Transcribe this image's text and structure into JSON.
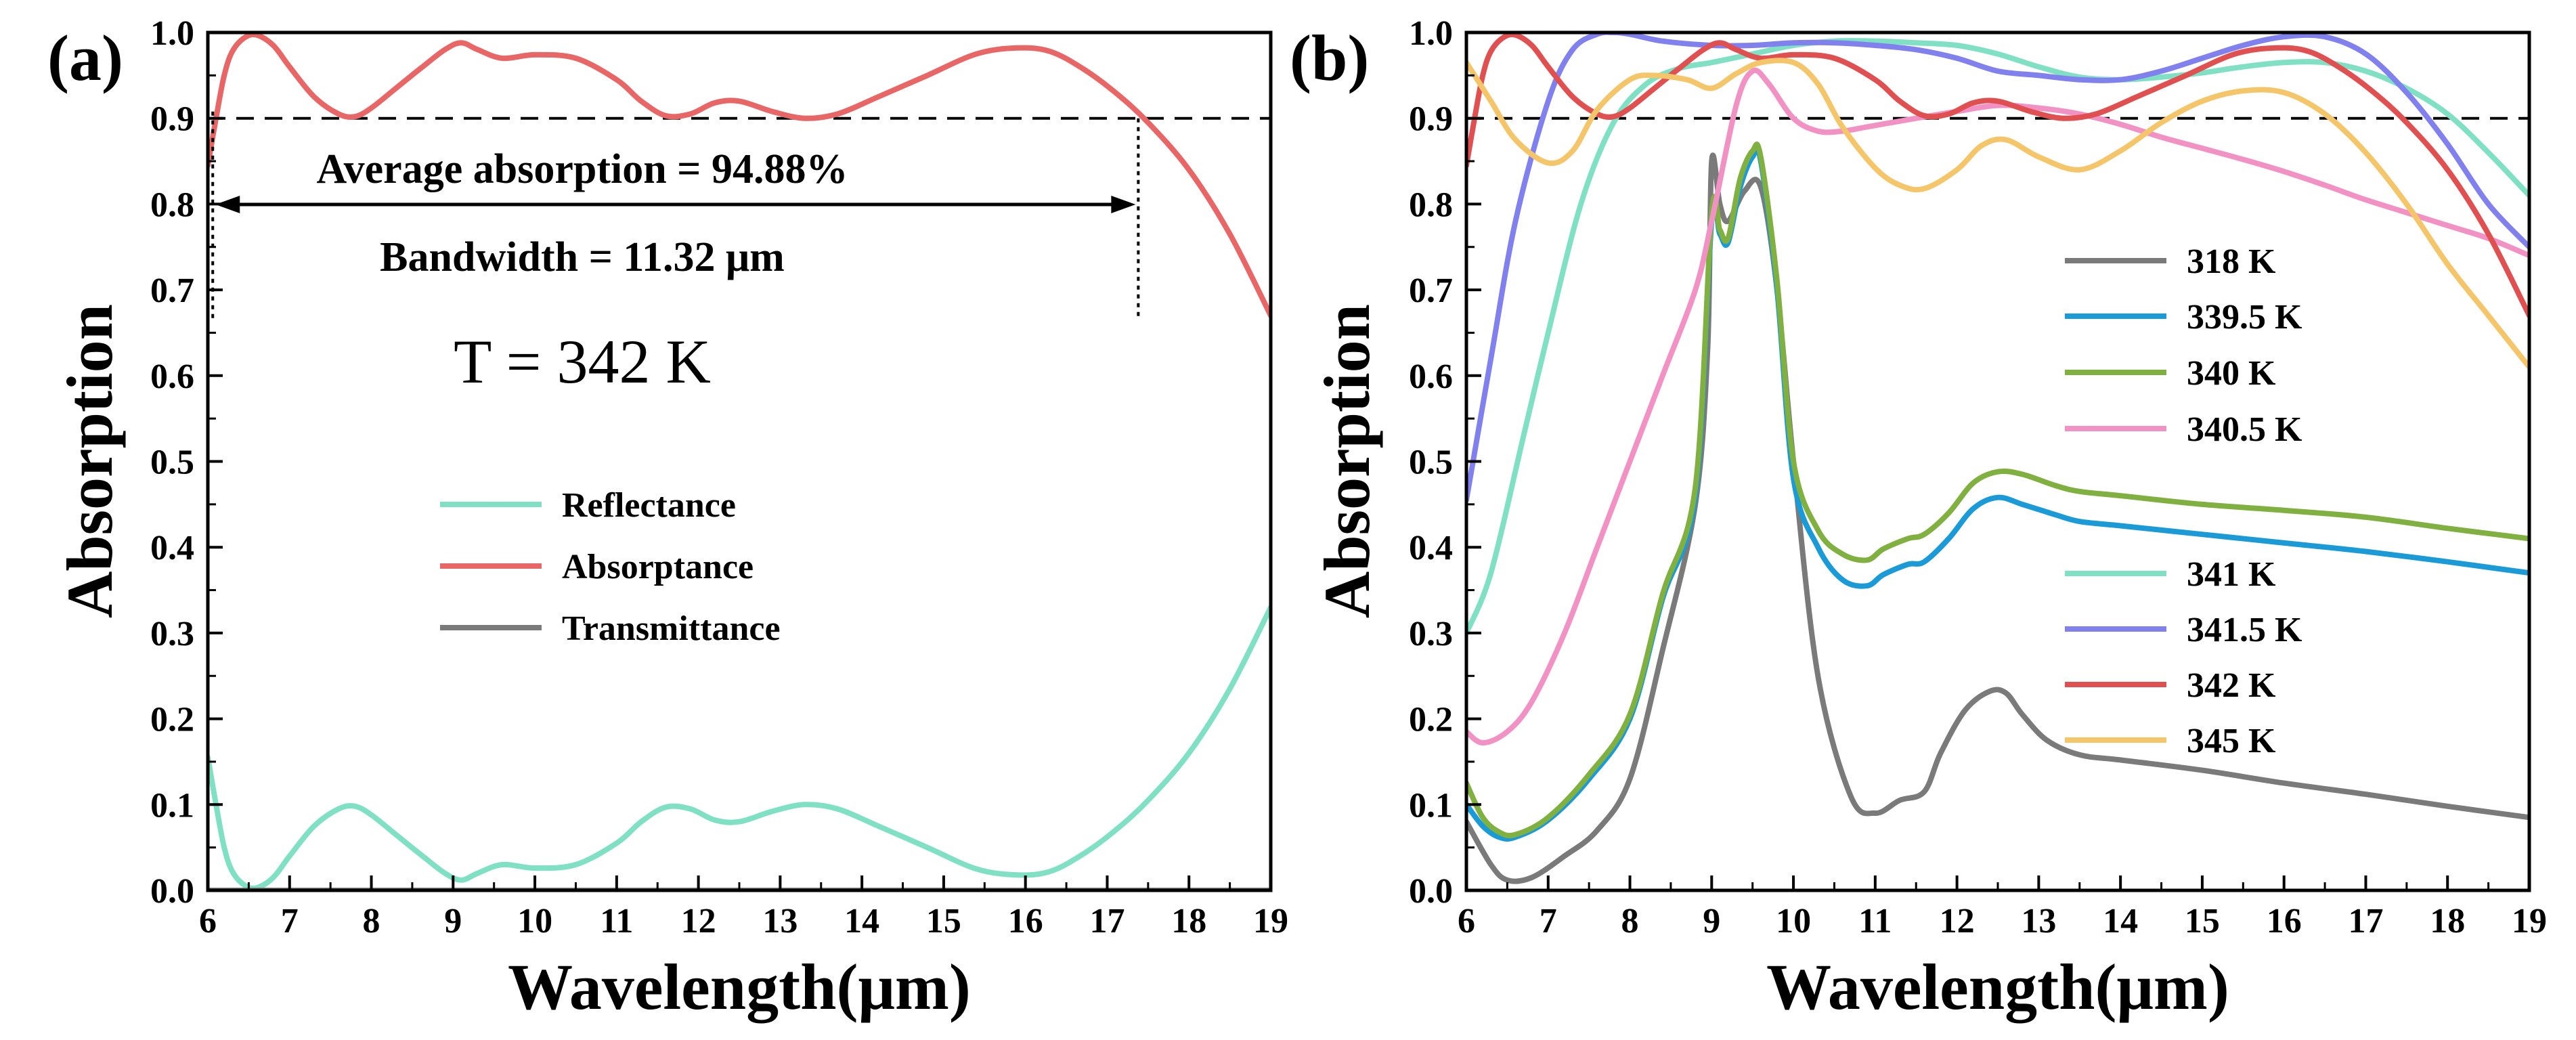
{
  "chart_data": [
    {
      "type": "line",
      "panel_label": "(a)",
      "xlabel": "Wavelength(μm)",
      "ylabel": "Absorption",
      "xlim": [
        6,
        19
      ],
      "ylim": [
        0,
        1.0
      ],
      "xticks": [
        "6",
        "7",
        "8",
        "9",
        "10",
        "11",
        "12",
        "13",
        "14",
        "15",
        "16",
        "17",
        "18",
        "19"
      ],
      "yticks": [
        "0.0",
        "0.1",
        "0.2",
        "0.3",
        "0.4",
        "0.5",
        "0.6",
        "0.7",
        "0.8",
        "0.9",
        "1.0"
      ],
      "reference_line_y": 0.9,
      "annotations": {
        "average": "Average absorption = 94.88%",
        "bandwidth": "Bandwidth = 11.32 μm",
        "temperature": "T = 342 K",
        "band_start_x": 6.06,
        "band_end_x": 17.38
      },
      "series": [
        {
          "name": "Reflectance",
          "color": "#7fe0c4",
          "x": [
            6.0,
            6.1,
            6.2,
            6.3,
            6.45,
            6.6,
            6.8,
            7.0,
            7.3,
            7.6,
            7.8,
            8.0,
            8.3,
            8.6,
            8.9,
            9.1,
            9.3,
            9.6,
            10.0,
            10.5,
            11.0,
            11.3,
            11.6,
            11.9,
            12.2,
            12.5,
            12.9,
            13.3,
            13.7,
            14.2,
            14.8,
            15.4,
            15.9,
            16.3,
            16.7,
            17.1,
            17.5,
            18.0,
            18.5,
            19.0
          ],
          "y": [
            0.155,
            0.1,
            0.05,
            0.022,
            0.006,
            0.003,
            0.015,
            0.04,
            0.075,
            0.095,
            0.098,
            0.088,
            0.065,
            0.042,
            0.02,
            0.012,
            0.02,
            0.03,
            0.026,
            0.03,
            0.055,
            0.08,
            0.097,
            0.095,
            0.082,
            0.08,
            0.092,
            0.1,
            0.095,
            0.075,
            0.05,
            0.025,
            0.018,
            0.022,
            0.042,
            0.07,
            0.105,
            0.16,
            0.235,
            0.33
          ]
        },
        {
          "name": "Absorptance",
          "color": "#e86666",
          "x": [
            6.0,
            6.1,
            6.2,
            6.3,
            6.45,
            6.6,
            6.8,
            7.0,
            7.3,
            7.6,
            7.8,
            8.0,
            8.3,
            8.6,
            8.9,
            9.1,
            9.3,
            9.6,
            10.0,
            10.5,
            11.0,
            11.3,
            11.6,
            11.9,
            12.2,
            12.5,
            12.9,
            13.3,
            13.7,
            14.2,
            14.8,
            15.4,
            15.9,
            16.3,
            16.7,
            17.1,
            17.5,
            18.0,
            18.5,
            19.0
          ],
          "y": [
            0.845,
            0.9,
            0.95,
            0.978,
            0.994,
            0.997,
            0.985,
            0.96,
            0.925,
            0.905,
            0.902,
            0.912,
            0.935,
            0.958,
            0.98,
            0.988,
            0.98,
            0.97,
            0.974,
            0.97,
            0.945,
            0.92,
            0.903,
            0.905,
            0.918,
            0.92,
            0.908,
            0.9,
            0.905,
            0.925,
            0.95,
            0.975,
            0.982,
            0.978,
            0.958,
            0.93,
            0.895,
            0.84,
            0.765,
            0.67
          ]
        },
        {
          "name": "Transmittance",
          "color": "#7a7a7a",
          "x": [
            6,
            19
          ],
          "y": [
            0.0,
            0.0
          ]
        }
      ]
    },
    {
      "type": "line",
      "panel_label": "(b)",
      "xlabel": "Wavelength(μm)",
      "ylabel": "Absorption",
      "xlim": [
        6,
        19
      ],
      "ylim": [
        0,
        1.0
      ],
      "xticks": [
        "6",
        "7",
        "8",
        "9",
        "10",
        "11",
        "12",
        "13",
        "14",
        "15",
        "16",
        "17",
        "18",
        "19"
      ],
      "yticks": [
        "0.0",
        "0.1",
        "0.2",
        "0.3",
        "0.4",
        "0.5",
        "0.6",
        "0.7",
        "0.8",
        "0.9",
        "1.0"
      ],
      "reference_line_y": 0.9,
      "series": [
        {
          "name": "318 K",
          "color": "#7a7a7a",
          "x": [
            6.0,
            6.3,
            6.5,
            6.8,
            7.2,
            7.6,
            8.0,
            8.4,
            8.8,
            8.95,
            9.0,
            9.1,
            9.2,
            9.4,
            9.6,
            9.8,
            10.0,
            10.3,
            10.7,
            11.0,
            11.3,
            11.6,
            11.8,
            12.1,
            12.4,
            12.6,
            12.8,
            13.1,
            13.5,
            14.0,
            15.0,
            16.0,
            17.0,
            18.0,
            19.0
          ],
          "y": [
            0.08,
            0.03,
            0.012,
            0.015,
            0.04,
            0.07,
            0.13,
            0.28,
            0.45,
            0.63,
            0.85,
            0.8,
            0.78,
            0.815,
            0.82,
            0.7,
            0.5,
            0.25,
            0.11,
            0.09,
            0.105,
            0.115,
            0.16,
            0.21,
            0.232,
            0.23,
            0.205,
            0.175,
            0.158,
            0.152,
            0.14,
            0.125,
            0.112,
            0.098,
            0.085
          ]
        },
        {
          "name": "339.5 K",
          "color": "#1a9ad6",
          "x": [
            6.0,
            6.2,
            6.4,
            6.6,
            7.0,
            7.5,
            8.0,
            8.4,
            8.8,
            9.0,
            9.1,
            9.2,
            9.35,
            9.5,
            9.6,
            9.8,
            10.0,
            10.3,
            10.6,
            10.9,
            11.1,
            11.4,
            11.6,
            11.9,
            12.2,
            12.5,
            12.8,
            13.2,
            13.5,
            14.0,
            15.0,
            16.0,
            17.0,
            18.0,
            19.0
          ],
          "y": [
            0.1,
            0.075,
            0.062,
            0.062,
            0.082,
            0.13,
            0.2,
            0.34,
            0.46,
            0.78,
            0.765,
            0.755,
            0.82,
            0.855,
            0.85,
            0.7,
            0.48,
            0.4,
            0.362,
            0.355,
            0.368,
            0.38,
            0.383,
            0.41,
            0.445,
            0.458,
            0.45,
            0.438,
            0.43,
            0.425,
            0.415,
            0.405,
            0.395,
            0.383,
            0.37
          ]
        },
        {
          "name": "340 K",
          "color": "#80b040",
          "x": [
            6.0,
            6.2,
            6.4,
            6.6,
            7.0,
            7.5,
            8.0,
            8.4,
            8.8,
            9.0,
            9.1,
            9.2,
            9.35,
            9.5,
            9.6,
            9.8,
            10.0,
            10.3,
            10.6,
            10.9,
            11.1,
            11.4,
            11.6,
            11.9,
            12.2,
            12.5,
            12.8,
            13.2,
            13.5,
            14.0,
            15.0,
            16.0,
            17.0,
            18.0,
            19.0
          ],
          "y": [
            0.125,
            0.085,
            0.068,
            0.065,
            0.085,
            0.135,
            0.205,
            0.345,
            0.47,
            0.79,
            0.77,
            0.76,
            0.83,
            0.862,
            0.855,
            0.71,
            0.5,
            0.42,
            0.392,
            0.385,
            0.398,
            0.41,
            0.415,
            0.44,
            0.475,
            0.488,
            0.485,
            0.472,
            0.465,
            0.46,
            0.45,
            0.443,
            0.435,
            0.422,
            0.41
          ]
        },
        {
          "name": "340.5 K",
          "color": "#f291c4",
          "x": [
            6.0,
            6.2,
            6.5,
            6.8,
            7.2,
            7.6,
            8.0,
            8.4,
            8.8,
            9.0,
            9.3,
            9.5,
            9.7,
            10.0,
            10.3,
            10.6,
            10.9,
            11.2,
            11.5,
            12.0,
            12.5,
            13.0,
            13.5,
            14.0,
            14.5,
            15.0,
            15.5,
            16.0,
            16.5,
            17.0,
            17.5,
            18.0,
            18.5,
            19.0
          ],
          "y": [
            0.185,
            0.172,
            0.185,
            0.22,
            0.3,
            0.4,
            0.5,
            0.6,
            0.7,
            0.78,
            0.915,
            0.955,
            0.94,
            0.9,
            0.885,
            0.885,
            0.89,
            0.895,
            0.9,
            0.908,
            0.915,
            0.912,
            0.905,
            0.893,
            0.878,
            0.865,
            0.852,
            0.838,
            0.822,
            0.805,
            0.79,
            0.775,
            0.76,
            0.74
          ]
        },
        {
          "name": "341 K",
          "color": "#7fe0c4",
          "x": [
            6.0,
            6.3,
            6.7,
            7.0,
            7.4,
            7.8,
            8.2,
            8.6,
            9.0,
            9.5,
            10.0,
            10.5,
            11.0,
            11.5,
            12.0,
            12.5,
            13.0,
            13.5,
            14.0,
            14.5,
            15.0,
            15.5,
            16.0,
            16.5,
            17.0,
            17.5,
            18.0,
            18.5,
            19.0
          ],
          "y": [
            0.3,
            0.37,
            0.53,
            0.65,
            0.8,
            0.895,
            0.94,
            0.958,
            0.965,
            0.975,
            0.985,
            0.99,
            0.99,
            0.988,
            0.985,
            0.975,
            0.96,
            0.948,
            0.945,
            0.948,
            0.953,
            0.96,
            0.965,
            0.965,
            0.955,
            0.935,
            0.905,
            0.86,
            0.81
          ]
        },
        {
          "name": "341.5 K",
          "color": "#8080ee",
          "x": [
            6.0,
            6.3,
            6.6,
            7.0,
            7.3,
            7.6,
            7.8,
            8.0,
            8.4,
            9.0,
            9.5,
            10.0,
            10.5,
            11.0,
            11.5,
            12.0,
            12.5,
            13.0,
            13.5,
            14.0,
            14.5,
            15.0,
            15.5,
            16.0,
            16.5,
            17.0,
            17.5,
            18.0,
            18.5,
            19.0
          ],
          "y": [
            0.455,
            0.62,
            0.78,
            0.92,
            0.98,
            0.998,
            1.0,
            0.998,
            0.99,
            0.985,
            0.985,
            0.988,
            0.988,
            0.985,
            0.98,
            0.97,
            0.955,
            0.95,
            0.945,
            0.945,
            0.955,
            0.97,
            0.985,
            0.995,
            0.995,
            0.975,
            0.93,
            0.87,
            0.8,
            0.75
          ]
        },
        {
          "name": "342 K",
          "color": "#e05050",
          "x": [
            6.0,
            6.1,
            6.2,
            6.3,
            6.45,
            6.6,
            6.8,
            7.0,
            7.3,
            7.6,
            7.8,
            8.0,
            8.3,
            8.6,
            8.9,
            9.1,
            9.3,
            9.6,
            10.0,
            10.5,
            11.0,
            11.3,
            11.6,
            11.9,
            12.2,
            12.5,
            12.9,
            13.3,
            13.7,
            14.2,
            14.8,
            15.4,
            15.9,
            16.3,
            16.7,
            17.1,
            17.5,
            18.0,
            18.5,
            19.0
          ],
          "y": [
            0.845,
            0.9,
            0.95,
            0.978,
            0.994,
            0.997,
            0.985,
            0.96,
            0.925,
            0.905,
            0.902,
            0.912,
            0.935,
            0.958,
            0.98,
            0.988,
            0.98,
            0.97,
            0.974,
            0.97,
            0.945,
            0.92,
            0.903,
            0.905,
            0.918,
            0.92,
            0.908,
            0.9,
            0.905,
            0.925,
            0.95,
            0.975,
            0.982,
            0.978,
            0.958,
            0.93,
            0.895,
            0.84,
            0.765,
            0.67
          ]
        },
        {
          "name": "345 K",
          "color": "#f5c56a",
          "x": [
            6.0,
            6.3,
            6.6,
            7.0,
            7.3,
            7.6,
            8.0,
            8.3,
            8.7,
            9.0,
            9.3,
            9.6,
            10.0,
            10.3,
            10.6,
            11.0,
            11.3,
            11.6,
            12.0,
            12.3,
            12.6,
            13.0,
            13.5,
            14.0,
            14.5,
            15.0,
            15.5,
            16.0,
            16.5,
            17.0,
            17.5,
            18.0,
            18.5,
            19.0
          ],
          "y": [
            0.965,
            0.92,
            0.875,
            0.848,
            0.862,
            0.91,
            0.945,
            0.95,
            0.945,
            0.935,
            0.952,
            0.965,
            0.965,
            0.94,
            0.89,
            0.842,
            0.822,
            0.818,
            0.84,
            0.868,
            0.875,
            0.855,
            0.84,
            0.862,
            0.895,
            0.92,
            0.932,
            0.93,
            0.905,
            0.86,
            0.8,
            0.73,
            0.67,
            0.61
          ]
        }
      ]
    }
  ]
}
